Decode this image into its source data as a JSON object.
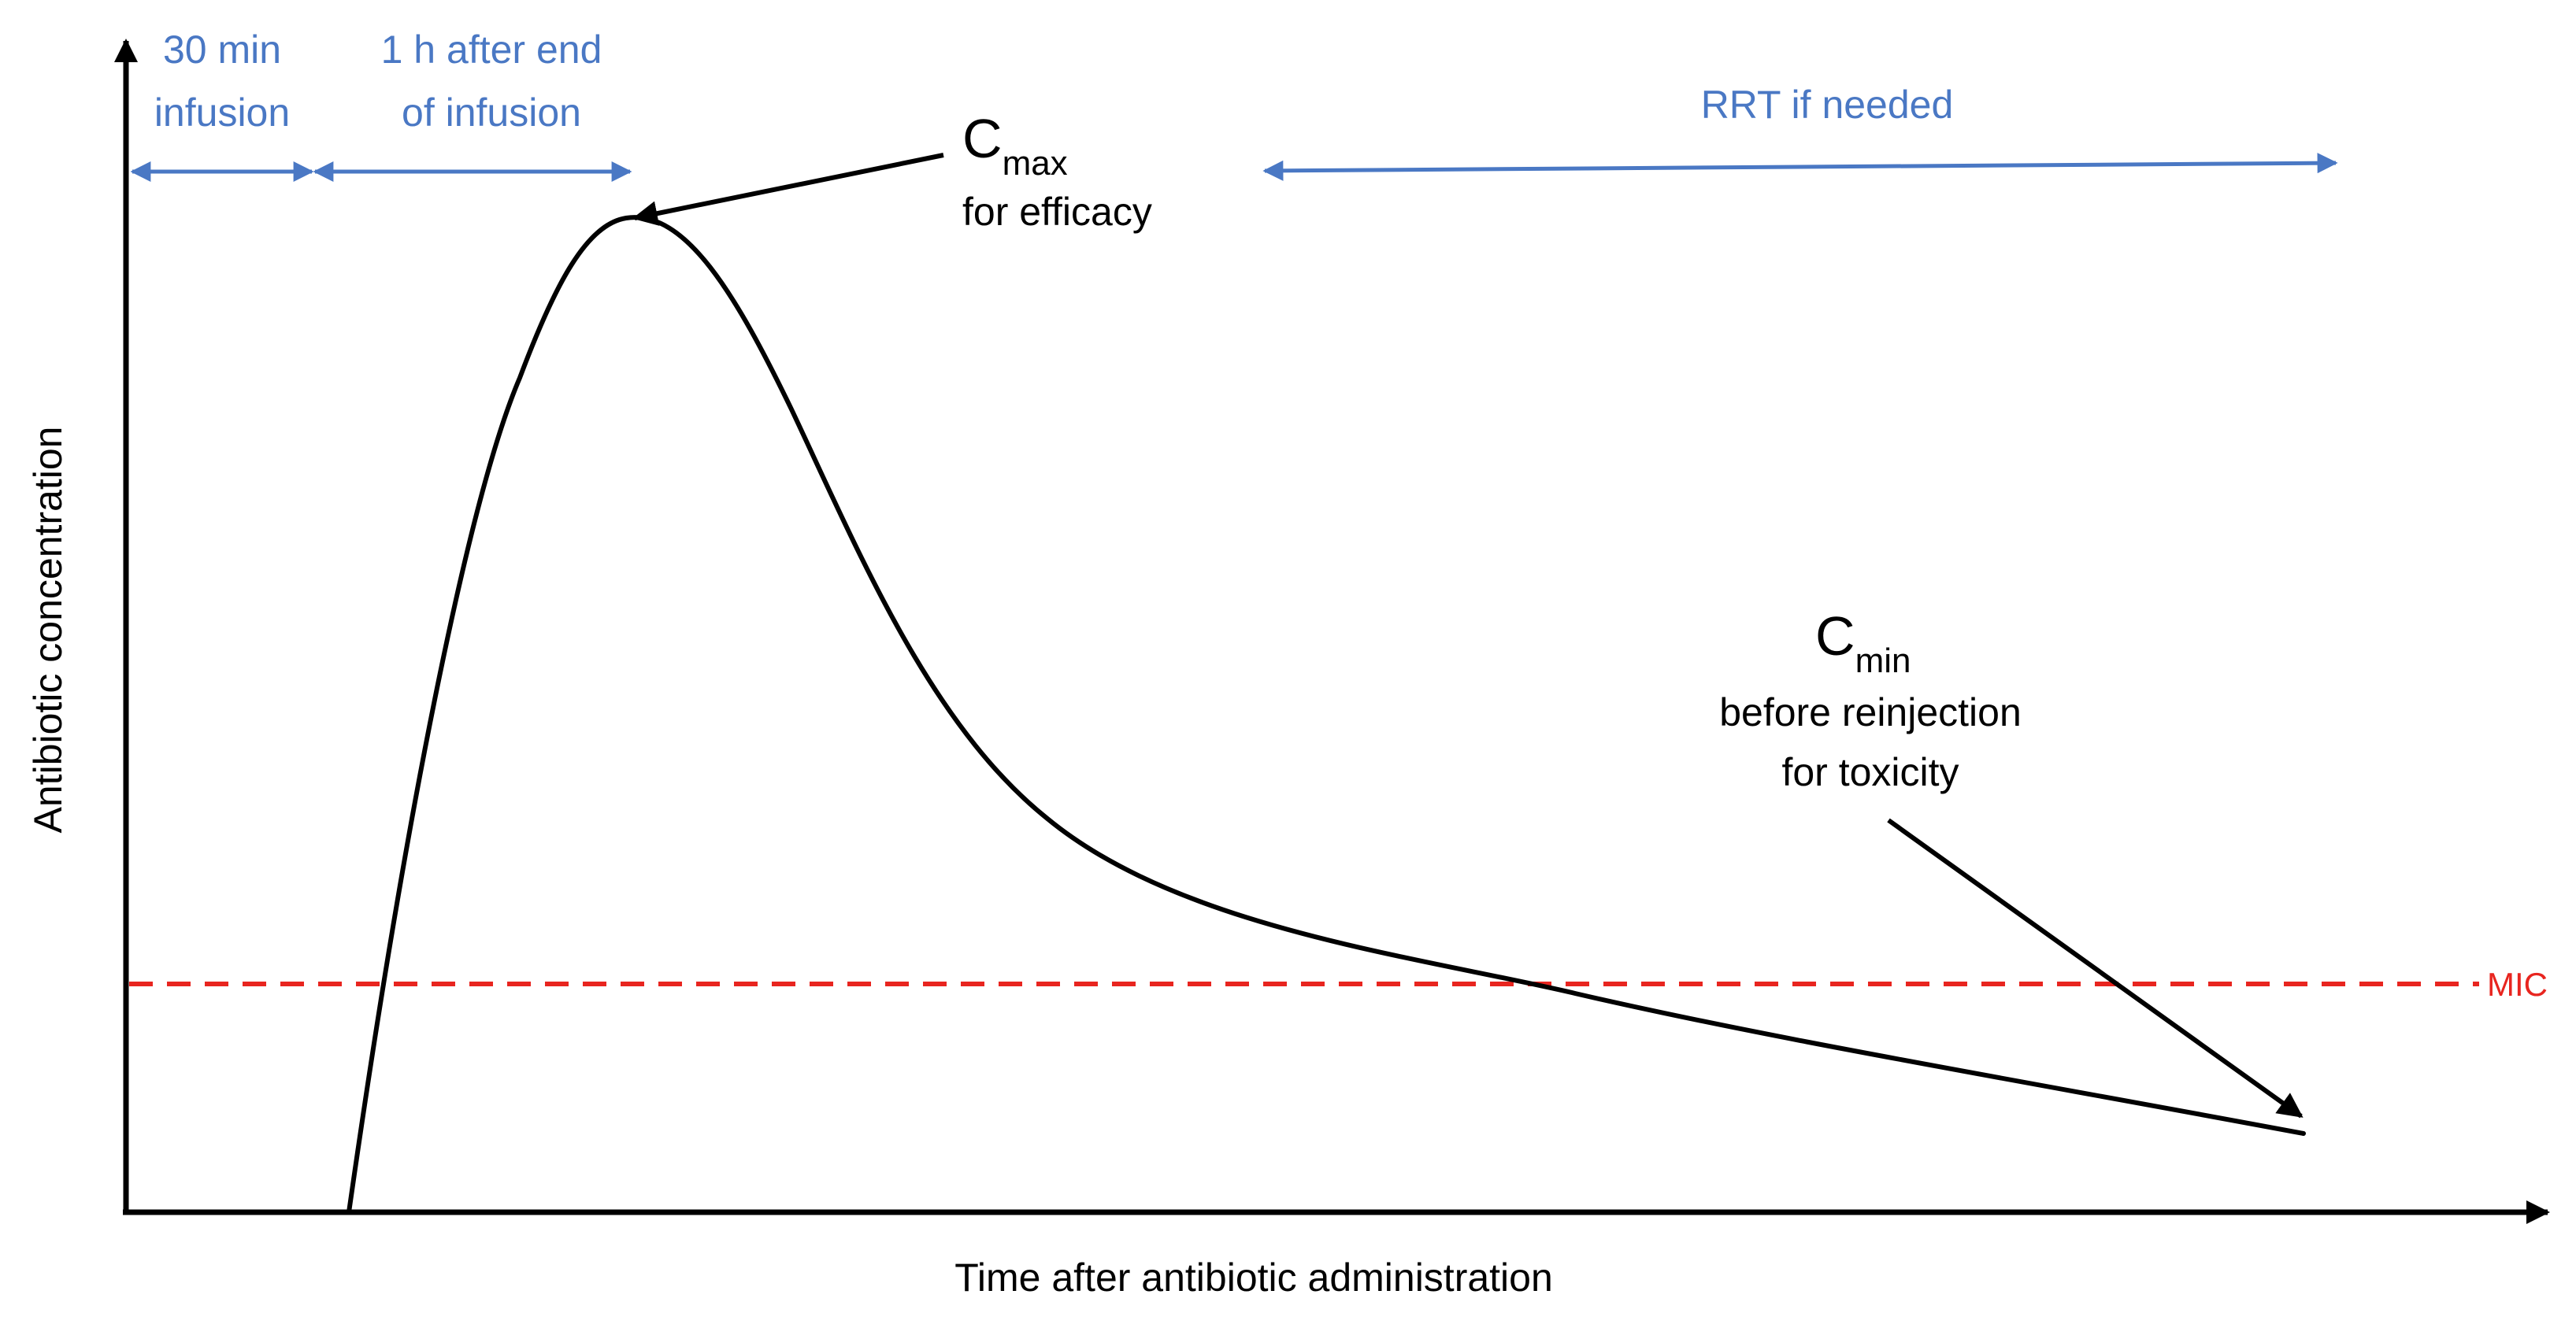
{
  "figure": {
    "y_axis_label": "Antibiotic concentration",
    "x_axis_label": "Time after antibiotic administration",
    "phases": {
      "infusion": {
        "line1": "30 min",
        "line2": "infusion"
      },
      "post_infusion": {
        "line1": "1 h after end",
        "line2": "of infusion"
      },
      "rrt": {
        "label": "RRT if needed"
      }
    },
    "cmax": {
      "symbol": "C",
      "subscript": "max",
      "caption": "for efficacy"
    },
    "cmin": {
      "symbol": "C",
      "subscript": "min",
      "caption_line1": "before reinjection",
      "caption_line2": "for toxicity"
    },
    "threshold": {
      "label": "MIC"
    }
  },
  "colors": {
    "axis": "#000000",
    "curve": "#000000",
    "phase_arrows": "#4a78c4",
    "mic_line": "#e8251f"
  }
}
